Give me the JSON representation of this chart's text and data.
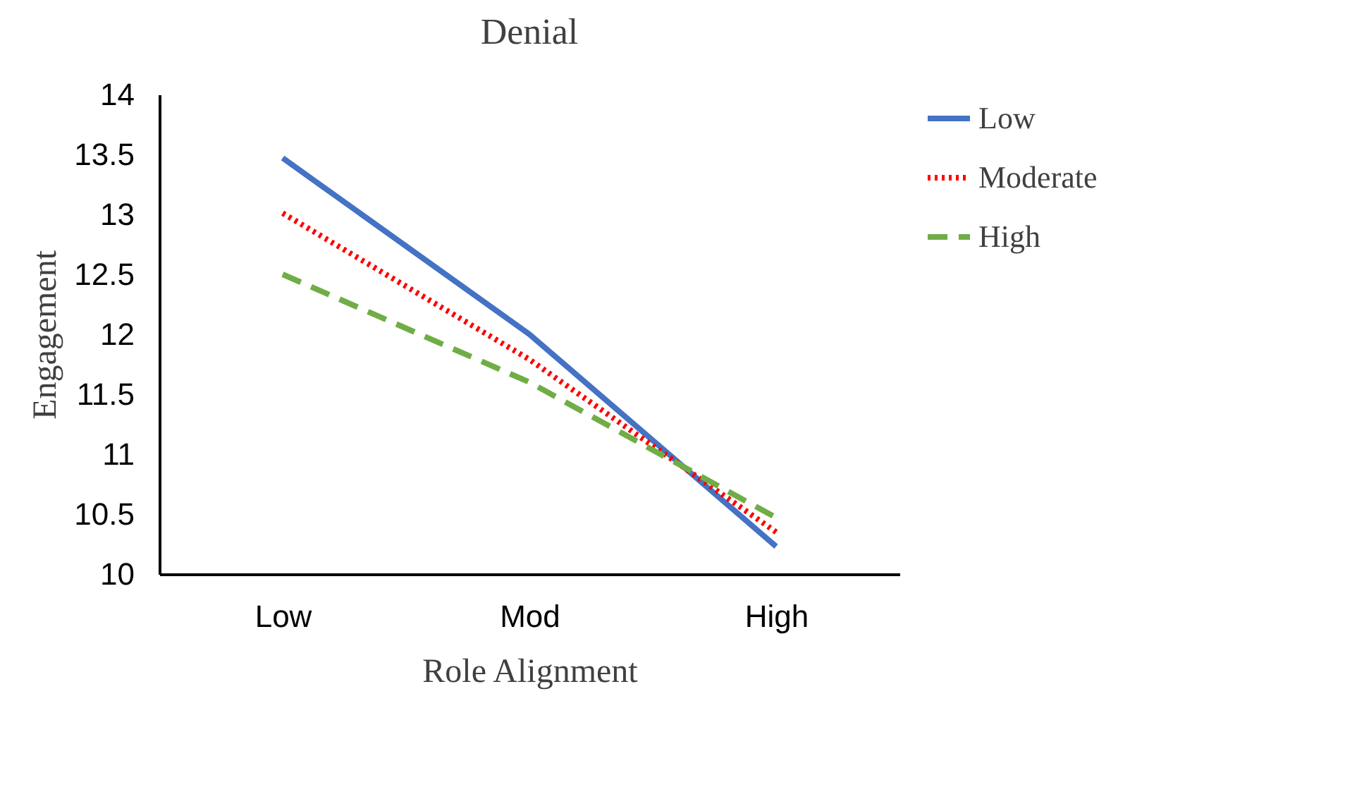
{
  "chart_data": {
    "type": "line",
    "title": "Denial",
    "xlabel": "Role Alignment",
    "ylabel": "Engagement",
    "categories": [
      "Low",
      "Mod",
      "High"
    ],
    "series": [
      {
        "name": "Low",
        "color": "#4472c4",
        "line_style": "solid",
        "values": [
          13.47,
          12.0,
          10.23
        ]
      },
      {
        "name": "Moderate",
        "color": "#ff0000",
        "line_style": "dotted",
        "values": [
          13.01,
          11.79,
          10.35
        ]
      },
      {
        "name": "High",
        "color": "#70ad47",
        "line_style": "dashed",
        "values": [
          12.5,
          11.6,
          10.47
        ]
      }
    ],
    "ylim": [
      10,
      14
    ],
    "yticks": [
      10,
      10.5,
      11,
      11.5,
      12,
      12.5,
      13,
      13.5,
      14
    ],
    "grid": false,
    "legend": "right",
    "marker": "none"
  }
}
